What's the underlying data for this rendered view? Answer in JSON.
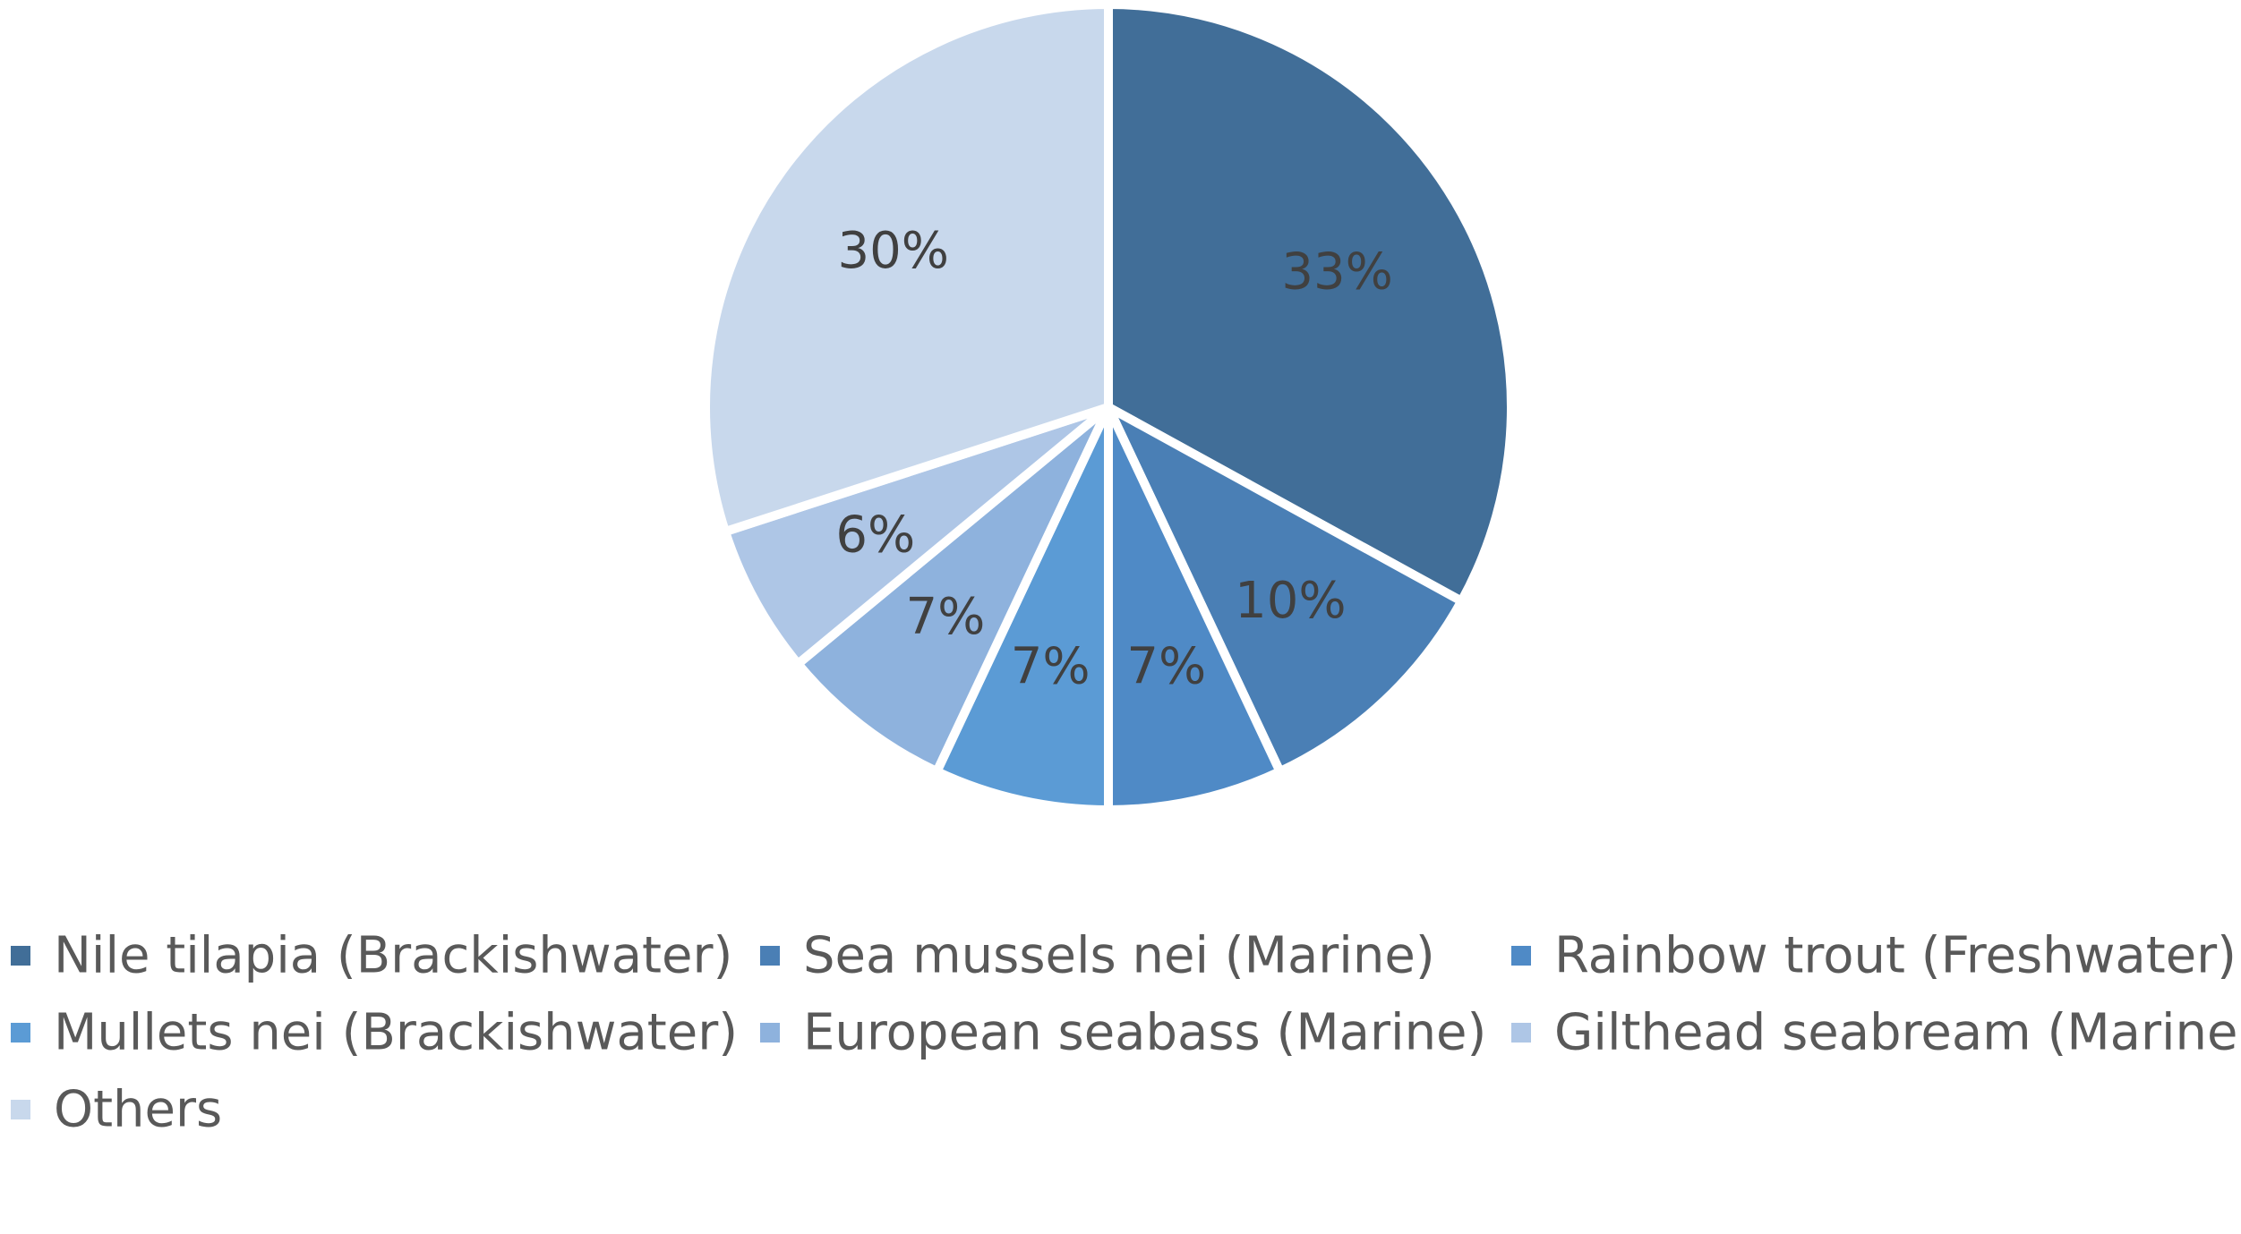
{
  "chart_data": {
    "type": "pie",
    "legend_position": "bottom",
    "start_angle_deg": 0,
    "direction": "clockwise",
    "slices": [
      {
        "label": "Nile tilapia (Brackishwater)",
        "value": 33,
        "display": "33%",
        "color": "#416e98"
      },
      {
        "label": "Sea mussels nei (Marine)",
        "value": 10,
        "display": "10%",
        "color": "#4a7fb5"
      },
      {
        "label": "Rainbow trout (Freshwater)",
        "value": 7,
        "display": "7%",
        "color": "#4f8ac6"
      },
      {
        "label": "Mullets nei (Brackishwater)",
        "value": 7,
        "display": "7%",
        "color": "#5b9bd5"
      },
      {
        "label": "European seabass (Marine)",
        "value": 7,
        "display": "7%",
        "color": "#8eb2dd"
      },
      {
        "label": "Gilthead seabream (Marine)",
        "value": 6,
        "display": "6%",
        "color": "#aec6e6"
      },
      {
        "label": "Others",
        "value": 30,
        "display": "30%",
        "color": "#c8d8ec"
      }
    ]
  }
}
